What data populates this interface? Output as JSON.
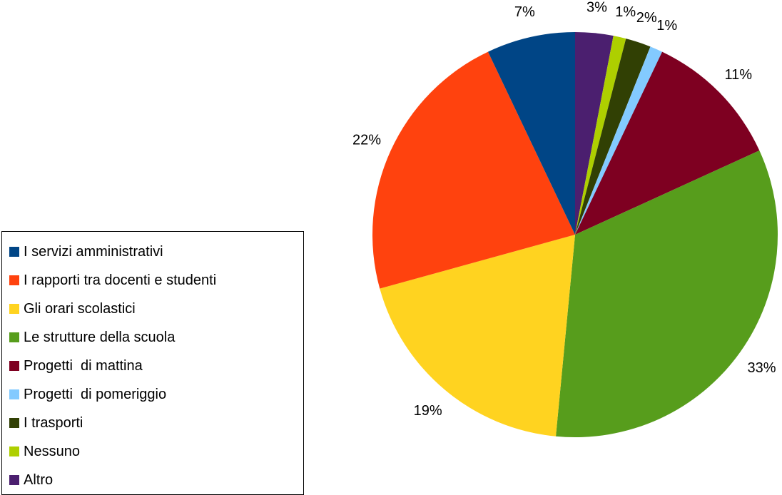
{
  "chart_data": {
    "type": "pie",
    "title": "",
    "start_angle_deg": 0,
    "direction": "clockwise",
    "legend_position": "left-bottom",
    "slices": [
      {
        "label": "Altro",
        "value": 3,
        "display": "3%",
        "color": "#4b1f6f"
      },
      {
        "label": "Nessuno",
        "value": 1,
        "display": "1%",
        "color": "#aecf00"
      },
      {
        "label": "I trasporti",
        "value": 2,
        "display": "2%",
        "color": "#314004"
      },
      {
        "label": "Progetti  di pomeriggio",
        "value": 1,
        "display": "1%",
        "color": "#83caff"
      },
      {
        "label": "Progetti  di mattina",
        "value": 11,
        "display": "11%",
        "color": "#7e0021"
      },
      {
        "label": "Le strutture della scuola",
        "value": 33,
        "display": "33%",
        "color": "#579d1c"
      },
      {
        "label": "Gli orari scolastici",
        "value": 19,
        "display": "19%",
        "color": "#ffd320"
      },
      {
        "label": "I rapporti tra docenti e studenti",
        "value": 22,
        "display": "22%",
        "color": "#ff420e"
      },
      {
        "label": "I servizi amministrativi",
        "value": 7,
        "display": "7%",
        "color": "#004586"
      }
    ],
    "legend": [
      {
        "label": "I servizi amministrativi",
        "color": "#004586"
      },
      {
        "label": "I rapporti tra docenti e studenti",
        "color": "#ff420e"
      },
      {
        "label": "Gli orari scolastici",
        "color": "#ffd320"
      },
      {
        "label": "Le strutture della scuola",
        "color": "#579d1c"
      },
      {
        "label": "Progetti  di mattina",
        "color": "#7e0021"
      },
      {
        "label": "Progetti  di pomeriggio",
        "color": "#83caff"
      },
      {
        "label": "I trasporti",
        "color": "#314004"
      },
      {
        "label": "Nessuno",
        "color": "#aecf00"
      },
      {
        "label": "Altro",
        "color": "#4b1f6f"
      }
    ]
  }
}
